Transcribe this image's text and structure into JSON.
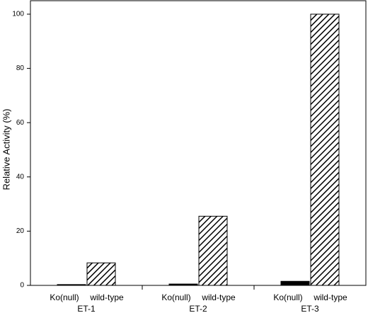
{
  "chart_data": {
    "type": "bar",
    "y_label": "Relative Activity (%)",
    "categories": [
      "ET-1",
      "ET-2",
      "ET-3"
    ],
    "series": [
      {
        "name": "Ko(null)",
        "color": "#000000",
        "pattern": "solid",
        "values": [
          0.3,
          0.5,
          1.5
        ]
      },
      {
        "name": "wild-type",
        "color": "#000000",
        "pattern": "hatch",
        "values": [
          8.3,
          25.5,
          100
        ]
      }
    ],
    "ylim": [
      0,
      100
    ],
    "yticks": [
      0,
      20,
      40,
      60,
      80,
      100
    ]
  }
}
